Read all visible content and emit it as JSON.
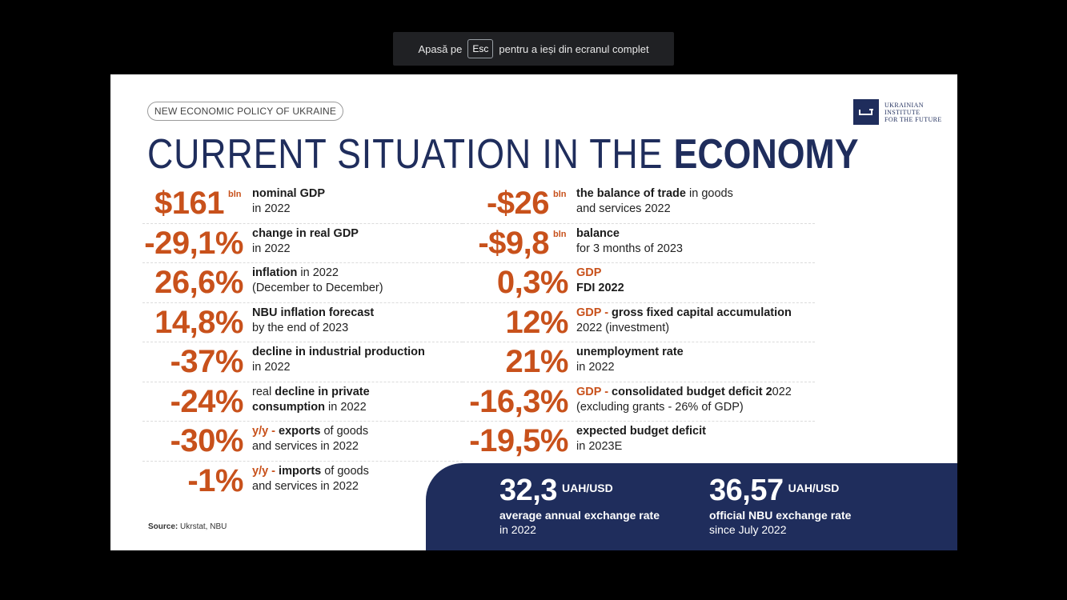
{
  "fullscreen_notice": {
    "before": "Apasă pe",
    "key": "Esc",
    "after": "pentru a ieși din ecranul complet"
  },
  "slide": {
    "tag": "NEW ECONOMIC POLICY OF UKRAINE",
    "logo": {
      "line1": "Ukrainian",
      "line2": "Institute",
      "line3": "for the Future"
    },
    "title_light": "CURRENT SITUATION IN THE ",
    "title_bold": "ECONOMY",
    "left": [
      {
        "value": "$161",
        "unit": "bln",
        "d1": "nominal GDP",
        "d2": "in 2022"
      },
      {
        "value": "-29,1%",
        "d1": "change in real GDP",
        "d2": "in 2022"
      },
      {
        "value": "26,6%",
        "d1a": "inflation",
        "d1b": " in 2022",
        "d2": "(December to December)"
      },
      {
        "value": "14,8%",
        "d1": "NBU inflation forecast",
        "d2": "by the end of 2023"
      },
      {
        "value": "-37%",
        "d1": "decline in industrial production",
        "d2": "in 2022"
      },
      {
        "value": "-24%",
        "d1a": "real ",
        "d1b": "decline in private",
        "d2a": "consumption",
        "d2b": " in 2022"
      },
      {
        "value": "-30%",
        "acc": "y/y - ",
        "d1a": "exports",
        "d1b": " of goods",
        "d2": "and services in 2022"
      },
      {
        "value": "-1%",
        "acc": "y/y - ",
        "d1a": "imports",
        "d1b": " of goods",
        "d2": "and services in 2022"
      }
    ],
    "right": [
      {
        "value": "-$26",
        "unit": "bln",
        "d1a": "the balance of trade",
        "d1b": " in goods",
        "d2": "and services 2022"
      },
      {
        "value": "-$9,8",
        "unit": "bln",
        "d1": "balance",
        "d2": "for 3 months of 2023"
      },
      {
        "value": "0,3%",
        "acc": "GDP",
        "d2": "FDI 2022"
      },
      {
        "value": "12%",
        "acc": "GDP - ",
        "d1": "gross fixed capital accumulation",
        "d2": "2022 (investment)"
      },
      {
        "value": "21%",
        "d1": "unemployment rate",
        "d2": "in 2022"
      },
      {
        "value": "-16,3%",
        "acc": "GDP - ",
        "d1": "consolidated budget deficit 2",
        "d1b": "022",
        "d2": "(excluding grants - 26% of GDP)"
      },
      {
        "value": "-19,5%",
        "d1": "expected budget deficit",
        "d2": "in 2023E"
      }
    ],
    "source_label": "Source:",
    "source_text": " Ukrstat, NBU",
    "rates": [
      {
        "value": "32,3",
        "currency": "UAH/USD",
        "l1": "average annual exchange rate",
        "l2": "in 2022"
      },
      {
        "value": "36,57",
        "currency": "UAH/USD",
        "l1": "official NBU exchange rate",
        "l2": "since July 2022"
      }
    ]
  }
}
